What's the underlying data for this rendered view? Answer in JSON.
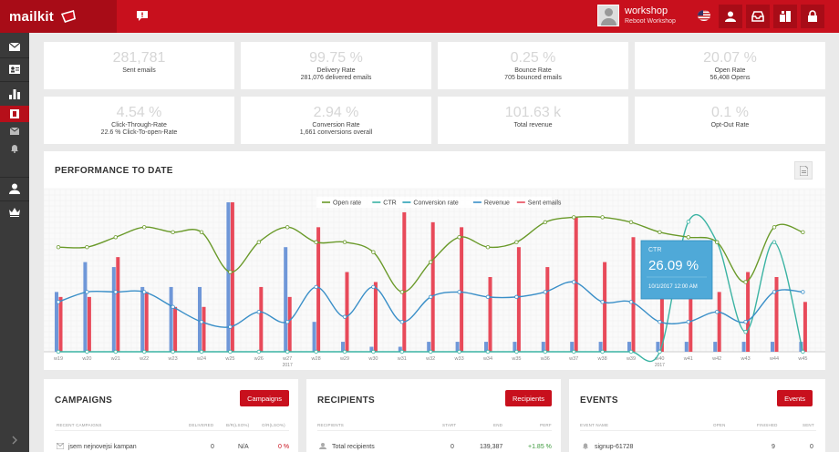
{
  "app": {
    "logo": "mailkit"
  },
  "user": {
    "name": "workshop",
    "org": "Reboot Workshop"
  },
  "kpis": [
    {
      "value": "281,781",
      "label": "Sent emails",
      "sub": ""
    },
    {
      "value": "99.75 %",
      "label": "Delivery Rate",
      "sub": "281,076 delivered emails"
    },
    {
      "value": "0.25 %",
      "label": "Bounce Rate",
      "sub": "705 bounced emails"
    },
    {
      "value": "20.07 %",
      "label": "Open Rate",
      "sub": "56,408 Opens"
    },
    {
      "value": "4.54 %",
      "label": "Click-Through-Rate",
      "sub": "22.6 % Click-To-open-Rate"
    },
    {
      "value": "2.94 %",
      "label": "Conversion Rate",
      "sub": "1,661 conversions overall"
    },
    {
      "value": "101.63 k",
      "label": "Total revenue",
      "sub": ""
    },
    {
      "value": "0.1 %",
      "label": "Opt-Out Rate",
      "sub": ""
    }
  ],
  "performance": {
    "title": "PERFORMANCE TO DATE",
    "tooltip": {
      "series": "CTR",
      "value": "26.09 %",
      "date": "10/1/2017 12:00 AM"
    }
  },
  "chart_data": {
    "type": "bar",
    "categories": [
      "w19",
      "w20",
      "w21",
      "w22",
      "w23",
      "w24",
      "w25",
      "w26",
      "w27",
      "w28",
      "w29",
      "w30",
      "w31",
      "w32",
      "w33",
      "w34",
      "w35",
      "w36",
      "w37",
      "w38",
      "w39",
      "w40",
      "w41",
      "w42",
      "w43",
      "w44",
      "w45"
    ],
    "category_sublabels": {
      "w27": "2017",
      "w40": "2017"
    },
    "series": [
      {
        "name": "Open rate",
        "type": "line",
        "color": "#6a9a2a",
        "values": [
          21,
          21,
          23,
          25,
          24,
          24,
          16,
          22,
          25,
          22,
          22,
          20,
          12,
          18,
          23,
          21,
          22,
          26,
          27,
          27,
          26,
          24,
          23,
          22,
          14,
          25,
          24
        ]
      },
      {
        "name": "CTR",
        "type": "line",
        "color": "#3bb3a3",
        "values": [
          0,
          0,
          0,
          0,
          0,
          0,
          0,
          0,
          0,
          0,
          0,
          0,
          0,
          0,
          0,
          0,
          0,
          0,
          0,
          0,
          0,
          0,
          26.09,
          22,
          4,
          22,
          0
        ]
      },
      {
        "name": "Conversion rate",
        "type": "line",
        "color": "#2aa1b6",
        "values": [
          0,
          0,
          0,
          0,
          0,
          0,
          0,
          0,
          0,
          0,
          0,
          0,
          0,
          0,
          0,
          0,
          0,
          0,
          0,
          0,
          0,
          0,
          0,
          0,
          0,
          0,
          0
        ]
      },
      {
        "name": "Revenue",
        "type": "line",
        "color": "#3a8fc8",
        "values": [
          10,
          12,
          12,
          12,
          9,
          6,
          5,
          8,
          6,
          13,
          7,
          13,
          6,
          11,
          12,
          11,
          11,
          12,
          14,
          10,
          10,
          6,
          6,
          8,
          6,
          12,
          12
        ]
      },
      {
        "name": "Sent emails",
        "type": "bar",
        "color": "#e84a5a",
        "values": [
          11,
          11,
          19,
          12,
          9,
          9,
          30,
          13,
          11,
          25,
          16,
          14,
          28,
          26,
          25,
          15,
          21,
          17,
          27,
          18,
          23,
          18,
          21,
          12,
          16,
          15,
          10
        ]
      },
      {
        "name": "Sent emails (prev)",
        "type": "bar",
        "color": "#6f97d8",
        "values": [
          12,
          18,
          17,
          13,
          13,
          13,
          30,
          0,
          21,
          6,
          2,
          1,
          1,
          2,
          2,
          2,
          2,
          2,
          2,
          2,
          2,
          2,
          2,
          2,
          2,
          2,
          2
        ]
      }
    ],
    "legend": [
      "Open rate",
      "CTR",
      "Conversion rate",
      "Revenue",
      "Sent emails"
    ],
    "grid": true,
    "legend_position": "top-center"
  },
  "campaigns": {
    "title": "CAMPAIGNS",
    "button": "Campaigns",
    "columns": [
      "RECENT CAMPAIGNS",
      "DELIVERED",
      "B/R(LSO%)",
      "O/R(LSO%)"
    ],
    "row": {
      "name": "jsem nejnovejsi kampan",
      "delivered": "0",
      "br": "N/A",
      "or": "0 %"
    }
  },
  "recipients": {
    "title": "RECIPIENTS",
    "button": "Recipients",
    "columns": [
      "RECIPIENTS",
      "START",
      "END",
      "PERF"
    ],
    "row": {
      "name": "Total recipients",
      "start": "0",
      "end": "139,387",
      "perf": "+1.85 %"
    }
  },
  "events": {
    "title": "EVENTS",
    "button": "Events",
    "columns": [
      "EVENT NAME",
      "OPEN",
      "FINISHED",
      "SENT"
    ],
    "row": {
      "name": "signup-61728",
      "open": "9",
      "finished": "0",
      "sent": ""
    }
  }
}
